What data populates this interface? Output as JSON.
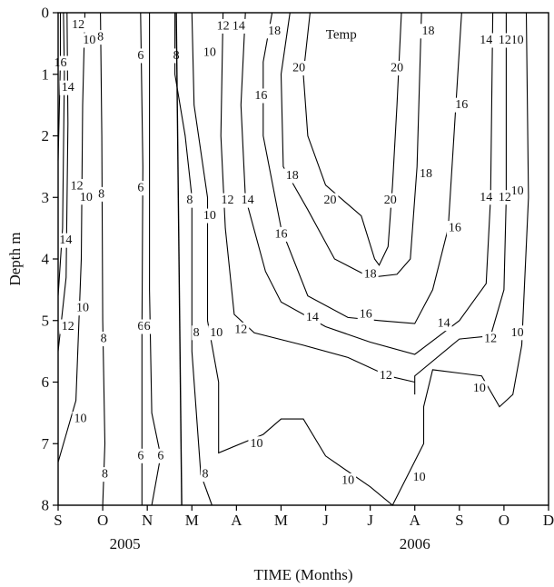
{
  "chart_data": {
    "type": "contour",
    "annotation": "Temp",
    "ylabel": "Depth m",
    "xlabel": "TIME (Months)",
    "x_ticks": [
      "S",
      "O",
      "N",
      "M",
      "A",
      "M",
      "J",
      "J",
      "A",
      "S",
      "O",
      "D"
    ],
    "year_labels": [
      {
        "label": "2005",
        "x_index": 1.5
      },
      {
        "label": "2006",
        "x_index": 8
      }
    ],
    "y_ticks": [
      0,
      1,
      2,
      3,
      4,
      5,
      6,
      7,
      8
    ],
    "ylim": [
      8,
      0
    ],
    "xlim": [
      0,
      11
    ],
    "y_inverted": true,
    "contour_levels": [
      6,
      8,
      10,
      12,
      14,
      16,
      18,
      20
    ],
    "gap_marker_x": 2.65,
    "contours": [
      {
        "level": 16,
        "points": [
          [
            0.05,
            0
          ],
          [
            0.05,
            0.8
          ],
          [
            0.0,
            2.4
          ]
        ],
        "labels": [
          [
            0.05,
            0.82
          ]
        ]
      },
      {
        "level": 14,
        "points": [
          [
            0.12,
            0
          ],
          [
            0.14,
            1.0
          ],
          [
            0.1,
            3.5
          ],
          [
            0.0,
            4.6
          ]
        ],
        "labels": [
          [
            0.22,
            1.22
          ],
          [
            0.17,
            3.7
          ]
        ]
      },
      {
        "level": 12,
        "points": [
          [
            0.2,
            0
          ],
          [
            0.22,
            1.8
          ],
          [
            0.18,
            4.3
          ],
          [
            0.0,
            5.5
          ]
        ],
        "labels": [
          [
            0.45,
            0.2
          ],
          [
            0.42,
            2.82
          ],
          [
            0.22,
            5.1
          ]
        ]
      },
      {
        "level": 10,
        "points": [
          [
            0.6,
            0
          ],
          [
            0.55,
            1.5
          ],
          [
            0.52,
            4.0
          ],
          [
            0.4,
            6.3
          ],
          [
            0.0,
            7.3
          ]
        ],
        "labels": [
          [
            0.7,
            0.45
          ],
          [
            0.63,
            3.0
          ],
          [
            0.55,
            4.8
          ],
          [
            0.5,
            6.6
          ]
        ]
      },
      {
        "level": 8,
        "points": [
          [
            0.95,
            0
          ],
          [
            0.98,
            2.0
          ],
          [
            1.0,
            5.0
          ],
          [
            1.05,
            7.0
          ],
          [
            1.0,
            8.0
          ]
        ],
        "labels": [
          [
            0.95,
            0.4
          ],
          [
            0.97,
            2.95
          ],
          [
            1.02,
            5.3
          ],
          [
            1.05,
            7.5
          ]
        ]
      },
      {
        "level": 6,
        "points": [
          [
            1.85,
            0
          ],
          [
            1.9,
            2.5
          ],
          [
            1.88,
            5.2
          ],
          [
            1.88,
            8.0
          ]
        ],
        "labels": [
          [
            1.85,
            0.7
          ],
          [
            1.85,
            2.85
          ],
          [
            1.85,
            5.1
          ],
          [
            1.85,
            7.2
          ]
        ]
      },
      {
        "level": 6,
        "points": [
          [
            2.05,
            0
          ],
          [
            2.05,
            4.5
          ],
          [
            2.1,
            6.5
          ],
          [
            2.3,
            7.2
          ],
          [
            2.1,
            8.0
          ]
        ],
        "labels": [
          [
            2.0,
            5.1
          ],
          [
            2.3,
            7.2
          ]
        ]
      },
      {
        "level": 8,
        "points": [
          [
            2.62,
            0
          ],
          [
            2.62,
            1.0
          ],
          [
            2.85,
            2.0
          ],
          [
            3.0,
            3.0
          ],
          [
            3.0,
            5.5
          ],
          [
            3.2,
            7.5
          ],
          [
            3.45,
            8.0
          ]
        ],
        "labels": [
          [
            2.65,
            0.7
          ],
          [
            2.95,
            3.05
          ],
          [
            3.1,
            5.2
          ],
          [
            3.3,
            7.5
          ]
        ]
      },
      {
        "level": 10,
        "points": [
          [
            3.0,
            0
          ],
          [
            3.05,
            1.5
          ],
          [
            3.35,
            3.0
          ],
          [
            3.35,
            5.0
          ],
          [
            3.6,
            6.0
          ],
          [
            3.6,
            7.15
          ],
          [
            4.6,
            6.85
          ],
          [
            5.0,
            6.6
          ],
          [
            5.5,
            6.6
          ],
          [
            6.0,
            7.2
          ],
          [
            7.0,
            7.7
          ],
          [
            7.5,
            8.0
          ],
          [
            8.2,
            7.0
          ],
          [
            8.2,
            6.4
          ],
          [
            8.4,
            5.8
          ],
          [
            9.5,
            5.9
          ],
          [
            9.9,
            6.4
          ],
          [
            10.2,
            6.2
          ],
          [
            10.4,
            5.4
          ],
          [
            10.55,
            3.0
          ],
          [
            10.5,
            0
          ]
        ],
        "labels": [
          [
            3.4,
            0.65
          ],
          [
            3.4,
            3.3
          ],
          [
            3.55,
            5.2
          ],
          [
            4.45,
            7.0
          ],
          [
            6.5,
            7.6
          ],
          [
            8.1,
            7.55
          ],
          [
            9.45,
            6.1
          ],
          [
            10.3,
            0.45
          ],
          [
            10.3,
            2.9
          ],
          [
            10.3,
            5.2
          ]
        ]
      },
      {
        "level": 12,
        "points": [
          [
            3.7,
            0
          ],
          [
            3.65,
            2.0
          ],
          [
            3.75,
            3.5
          ],
          [
            3.95,
            4.9
          ],
          [
            4.4,
            5.2
          ],
          [
            5.5,
            5.4
          ],
          [
            6.5,
            5.6
          ],
          [
            7.4,
            5.9
          ],
          [
            8.0,
            6.0
          ],
          [
            8.0,
            6.2
          ],
          [
            8.0,
            5.9
          ],
          [
            9.0,
            5.3
          ],
          [
            9.7,
            5.25
          ],
          [
            10.0,
            4.5
          ],
          [
            10.05,
            3.0
          ],
          [
            10.05,
            0
          ]
        ],
        "labels": [
          [
            3.7,
            0.22
          ],
          [
            3.8,
            3.05
          ],
          [
            4.1,
            5.15
          ],
          [
            7.35,
            5.9
          ],
          [
            9.7,
            5.3
          ],
          [
            10.02,
            0.45
          ],
          [
            10.02,
            3.0
          ]
        ]
      },
      {
        "level": 14,
        "points": [
          [
            4.2,
            0
          ],
          [
            4.1,
            1.5
          ],
          [
            4.2,
            3.0
          ],
          [
            4.65,
            4.2
          ],
          [
            5.0,
            4.7
          ],
          [
            6.0,
            5.1
          ],
          [
            7.0,
            5.35
          ],
          [
            8.0,
            5.55
          ],
          [
            9.0,
            5.0
          ],
          [
            9.6,
            4.4
          ],
          [
            9.7,
            3.0
          ],
          [
            9.75,
            0
          ]
        ],
        "labels": [
          [
            4.05,
            0.22
          ],
          [
            4.25,
            3.05
          ],
          [
            5.7,
            4.95
          ],
          [
            8.65,
            5.05
          ],
          [
            9.6,
            0.45
          ],
          [
            9.6,
            3.0
          ]
        ]
      },
      {
        "level": 16,
        "points": [
          [
            4.8,
            0
          ],
          [
            4.6,
            0.8
          ],
          [
            4.6,
            2.0
          ],
          [
            5.0,
            3.5
          ],
          [
            5.6,
            4.6
          ],
          [
            6.5,
            4.95
          ],
          [
            7.2,
            5.0
          ],
          [
            8.0,
            5.05
          ],
          [
            8.4,
            4.5
          ],
          [
            8.75,
            3.5
          ],
          [
            9.05,
            0
          ]
        ],
        "labels": [
          [
            4.55,
            1.35
          ],
          [
            5.0,
            3.6
          ],
          [
            6.9,
            4.9
          ],
          [
            9.05,
            1.5
          ],
          [
            8.9,
            3.5
          ]
        ]
      },
      {
        "level": 18,
        "points": [
          [
            5.2,
            0
          ],
          [
            5.0,
            1.0
          ],
          [
            5.05,
            2.5
          ],
          [
            5.6,
            3.2
          ],
          [
            6.2,
            4.0
          ],
          [
            7.0,
            4.3
          ],
          [
            7.6,
            4.25
          ],
          [
            7.9,
            4.0
          ],
          [
            8.05,
            2.5
          ],
          [
            8.15,
            0
          ]
        ],
        "labels": [
          [
            4.85,
            0.3
          ],
          [
            5.25,
            2.65
          ],
          [
            7.0,
            4.25
          ],
          [
            8.3,
            0.3
          ],
          [
            8.25,
            2.62
          ]
        ]
      },
      {
        "level": 20,
        "points": [
          [
            5.65,
            0
          ],
          [
            5.5,
            1.0
          ],
          [
            5.6,
            2.0
          ],
          [
            6.0,
            2.8
          ],
          [
            6.8,
            3.3
          ],
          [
            7.1,
            4.0
          ],
          [
            7.2,
            4.1
          ],
          [
            7.4,
            3.8
          ],
          [
            7.5,
            2.8
          ],
          [
            7.6,
            1.5
          ],
          [
            7.7,
            0
          ]
        ],
        "labels": [
          [
            5.4,
            0.9
          ],
          [
            6.1,
            3.05
          ],
          [
            7.45,
            3.05
          ],
          [
            7.6,
            0.9
          ]
        ]
      }
    ]
  }
}
